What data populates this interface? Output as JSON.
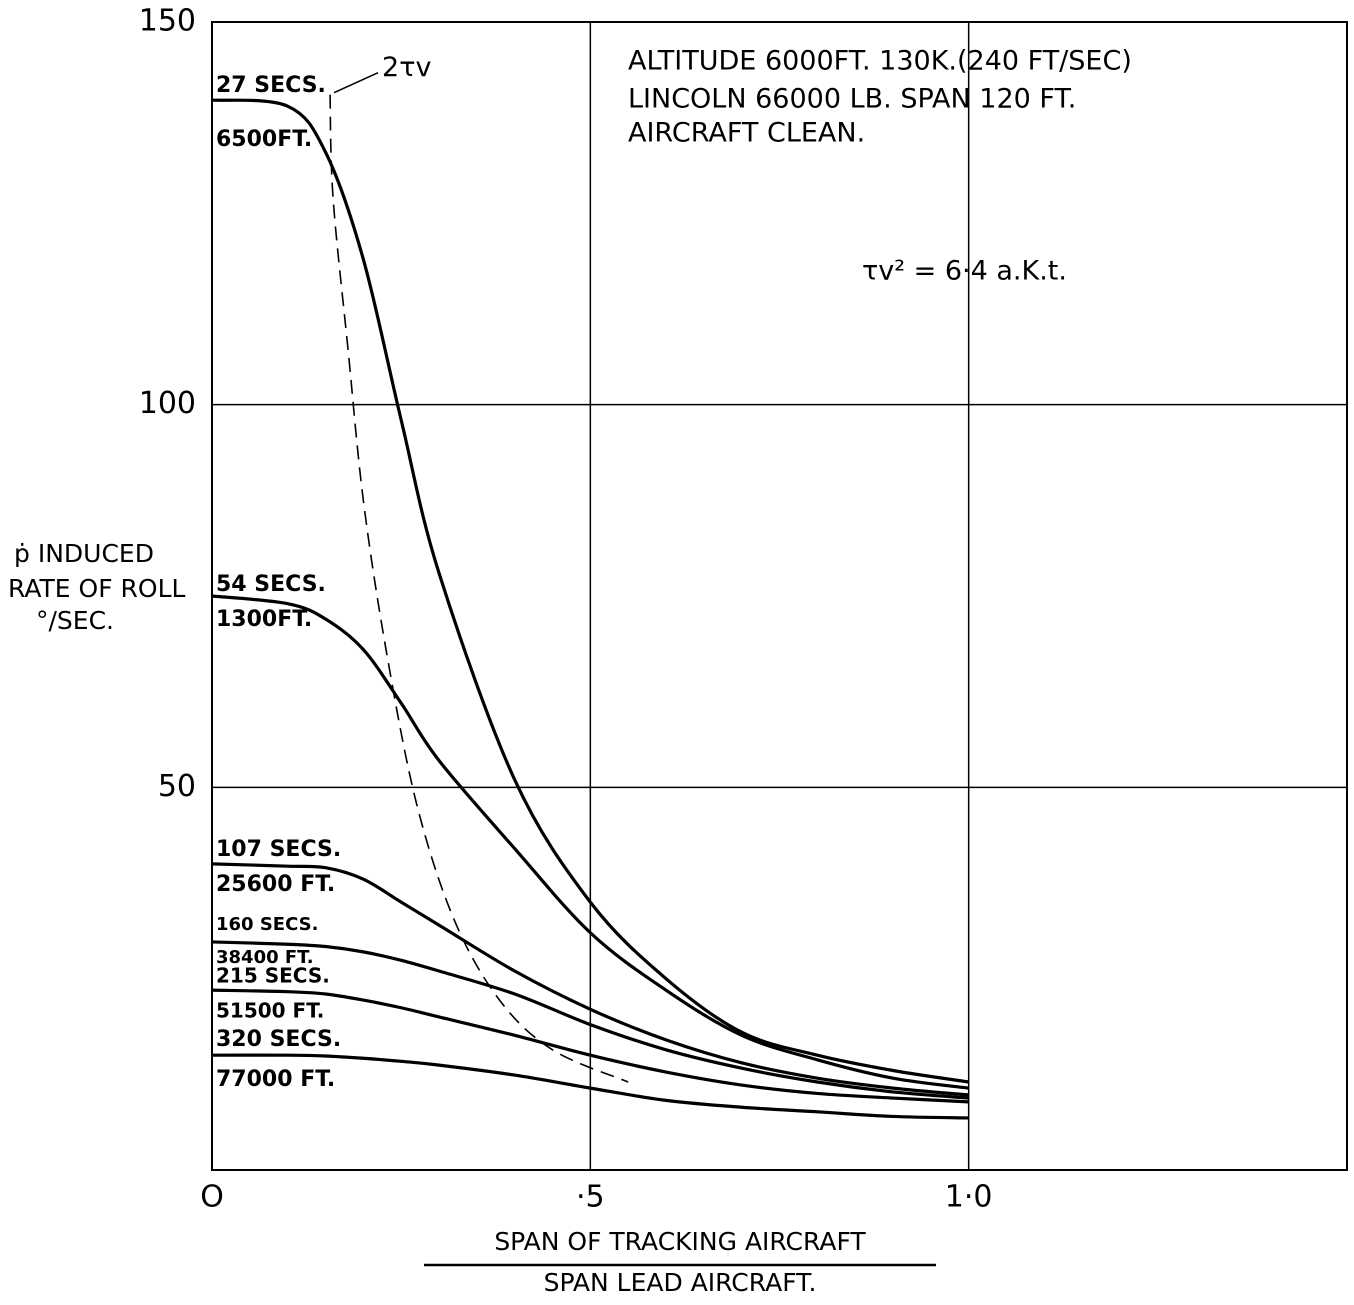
{
  "chart_data": {
    "type": "line",
    "x_label_numerator": "SPAN OF TRACKING AIRCRAFT",
    "x_label_denominator": "SPAN LEAD AIRCRAFT.",
    "y_label": [
      "ṗ INDUCED",
      "RATE OF ROLL",
      "°/SEC."
    ],
    "annotations": [
      "ALTITUDE 6000FT. 130K.(240 FT/SEC)",
      "LINCOLN 66000 LB. SPAN 120 FT.",
      "AIRCRAFT CLEAN.",
      "τv² = 6·4 a.K.t."
    ],
    "x": [
      0,
      0.1,
      0.15,
      0.2,
      0.25,
      0.3,
      0.4,
      0.5,
      0.6,
      0.7,
      0.8,
      0.9,
      1.0
    ],
    "xlim": [
      0,
      1.5
    ],
    "ylim": [
      0,
      150
    ],
    "xticks": [
      {
        "value": 0,
        "label": "O"
      },
      {
        "value": 0.5,
        "label": "·5"
      },
      {
        "value": 1.0,
        "label": "1·0"
      }
    ],
    "yticks": [
      50,
      100,
      150
    ],
    "grid": true,
    "series": [
      {
        "name": "27 SECS.",
        "altitude": "6500FT.",
        "color": "#000000",
        "values": [
          139.8,
          139,
          133,
          119,
          98,
          78,
          51,
          35,
          25,
          18,
          15,
          13,
          11.5
        ]
      },
      {
        "name": "54 SECS.",
        "altitude": "1300FT.",
        "color": "#000000",
        "values": [
          75,
          74,
          72,
          68,
          61,
          53.5,
          42,
          31,
          23.5,
          17.6,
          14.4,
          12,
          10.7
        ]
      },
      {
        "name": "107 SECS.",
        "altitude": "25600 FT.",
        "color": "#000000",
        "values": [
          40,
          39.7,
          39.5,
          38,
          35,
          32,
          26,
          21,
          17,
          14,
          12,
          10.7,
          9.8
        ]
      },
      {
        "name": "160 SECS.",
        "altitude": "38400 FT.",
        "color": "#000000",
        "values": [
          29.8,
          29.5,
          29.2,
          28.5,
          27.4,
          26,
          23,
          19,
          15.7,
          13.3,
          11.5,
          10.2,
          9.4
        ]
      },
      {
        "name": "215 SECS.",
        "altitude": "51500 FT.",
        "color": "#000000",
        "values": [
          23.5,
          23.3,
          23,
          22.2,
          21.2,
          20,
          17.6,
          15,
          12.8,
          11.1,
          10,
          9.4,
          8.9
        ]
      },
      {
        "name": "320 SECS.",
        "altitude": "77000 FT.",
        "color": "#000000",
        "values": [
          15,
          15,
          14.9,
          14.6,
          14.2,
          13.7,
          12.4,
          10.7,
          9.1,
          8.2,
          7.6,
          7,
          6.8
        ]
      },
      {
        "name": "2τv",
        "color": "#000000",
        "dashed": true,
        "x": [
          0.156,
          0.16,
          0.18,
          0.2,
          0.23,
          0.27,
          0.32,
          0.38,
          0.45,
          0.55
        ],
        "values": [
          140.5,
          127,
          107,
          87.5,
          68,
          48,
          32.7,
          22.2,
          15.7,
          11.5
        ]
      }
    ]
  }
}
